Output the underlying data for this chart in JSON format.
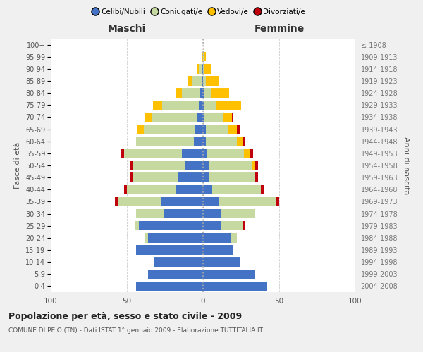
{
  "age_groups": [
    "0-4",
    "5-9",
    "10-14",
    "15-19",
    "20-24",
    "25-29",
    "30-34",
    "35-39",
    "40-44",
    "45-49",
    "50-54",
    "55-59",
    "60-64",
    "65-69",
    "70-74",
    "75-79",
    "80-84",
    "85-89",
    "90-94",
    "95-99",
    "100+"
  ],
  "birth_years": [
    "2004-2008",
    "1999-2003",
    "1994-1998",
    "1989-1993",
    "1984-1988",
    "1979-1983",
    "1974-1978",
    "1969-1973",
    "1964-1968",
    "1959-1963",
    "1954-1958",
    "1949-1953",
    "1944-1948",
    "1939-1943",
    "1934-1938",
    "1929-1933",
    "1924-1928",
    "1919-1923",
    "1914-1918",
    "1909-1913",
    "≤ 1908"
  ],
  "male": {
    "celibi": [
      44,
      36,
      32,
      44,
      36,
      42,
      26,
      28,
      18,
      16,
      12,
      14,
      6,
      5,
      4,
      3,
      2,
      1,
      1,
      0,
      0
    ],
    "coniugati": [
      0,
      0,
      0,
      0,
      2,
      3,
      18,
      28,
      32,
      30,
      34,
      38,
      38,
      34,
      30,
      24,
      12,
      6,
      2,
      0,
      0
    ],
    "vedovi": [
      0,
      0,
      0,
      0,
      0,
      0,
      0,
      0,
      0,
      0,
      0,
      0,
      0,
      4,
      4,
      6,
      4,
      3,
      1,
      1,
      0
    ],
    "divorziati": [
      0,
      0,
      0,
      0,
      0,
      0,
      0,
      2,
      2,
      2,
      2,
      2,
      0,
      0,
      0,
      0,
      0,
      0,
      0,
      0,
      0
    ]
  },
  "female": {
    "nubili": [
      42,
      34,
      24,
      20,
      18,
      12,
      12,
      10,
      6,
      4,
      4,
      3,
      2,
      2,
      1,
      1,
      1,
      0,
      0,
      0,
      0
    ],
    "coniugate": [
      0,
      0,
      0,
      0,
      4,
      14,
      22,
      38,
      32,
      30,
      28,
      24,
      20,
      14,
      12,
      8,
      4,
      2,
      1,
      1,
      0
    ],
    "vedove": [
      0,
      0,
      0,
      0,
      0,
      0,
      0,
      0,
      0,
      0,
      2,
      4,
      4,
      6,
      6,
      16,
      12,
      8,
      4,
      1,
      0
    ],
    "divorziate": [
      0,
      0,
      0,
      0,
      0,
      2,
      0,
      2,
      2,
      2,
      2,
      2,
      2,
      2,
      1,
      0,
      0,
      0,
      0,
      0,
      0
    ]
  },
  "colors": {
    "celibi": "#4472c4",
    "coniugati": "#c5d9a0",
    "vedovi": "#ffc000",
    "divorziati": "#c0000b"
  },
  "xlim": 100,
  "title": "Popolazione per età, sesso e stato civile - 2009",
  "subtitle": "COMUNE DI PEIO (TN) - Dati ISTAT 1° gennaio 2009 - Elaborazione TUTTITALIA.IT",
  "ylabel_left": "Fasce di età",
  "ylabel_right": "Anni di nascita",
  "xlabel_left": "Maschi",
  "xlabel_right": "Femmine",
  "bg_color": "#f0f0f0",
  "plot_bg_color": "#ffffff",
  "legend_labels": [
    "Celibi/Nubili",
    "Coniugati/e",
    "Vedovi/e",
    "Divorziati/e"
  ]
}
